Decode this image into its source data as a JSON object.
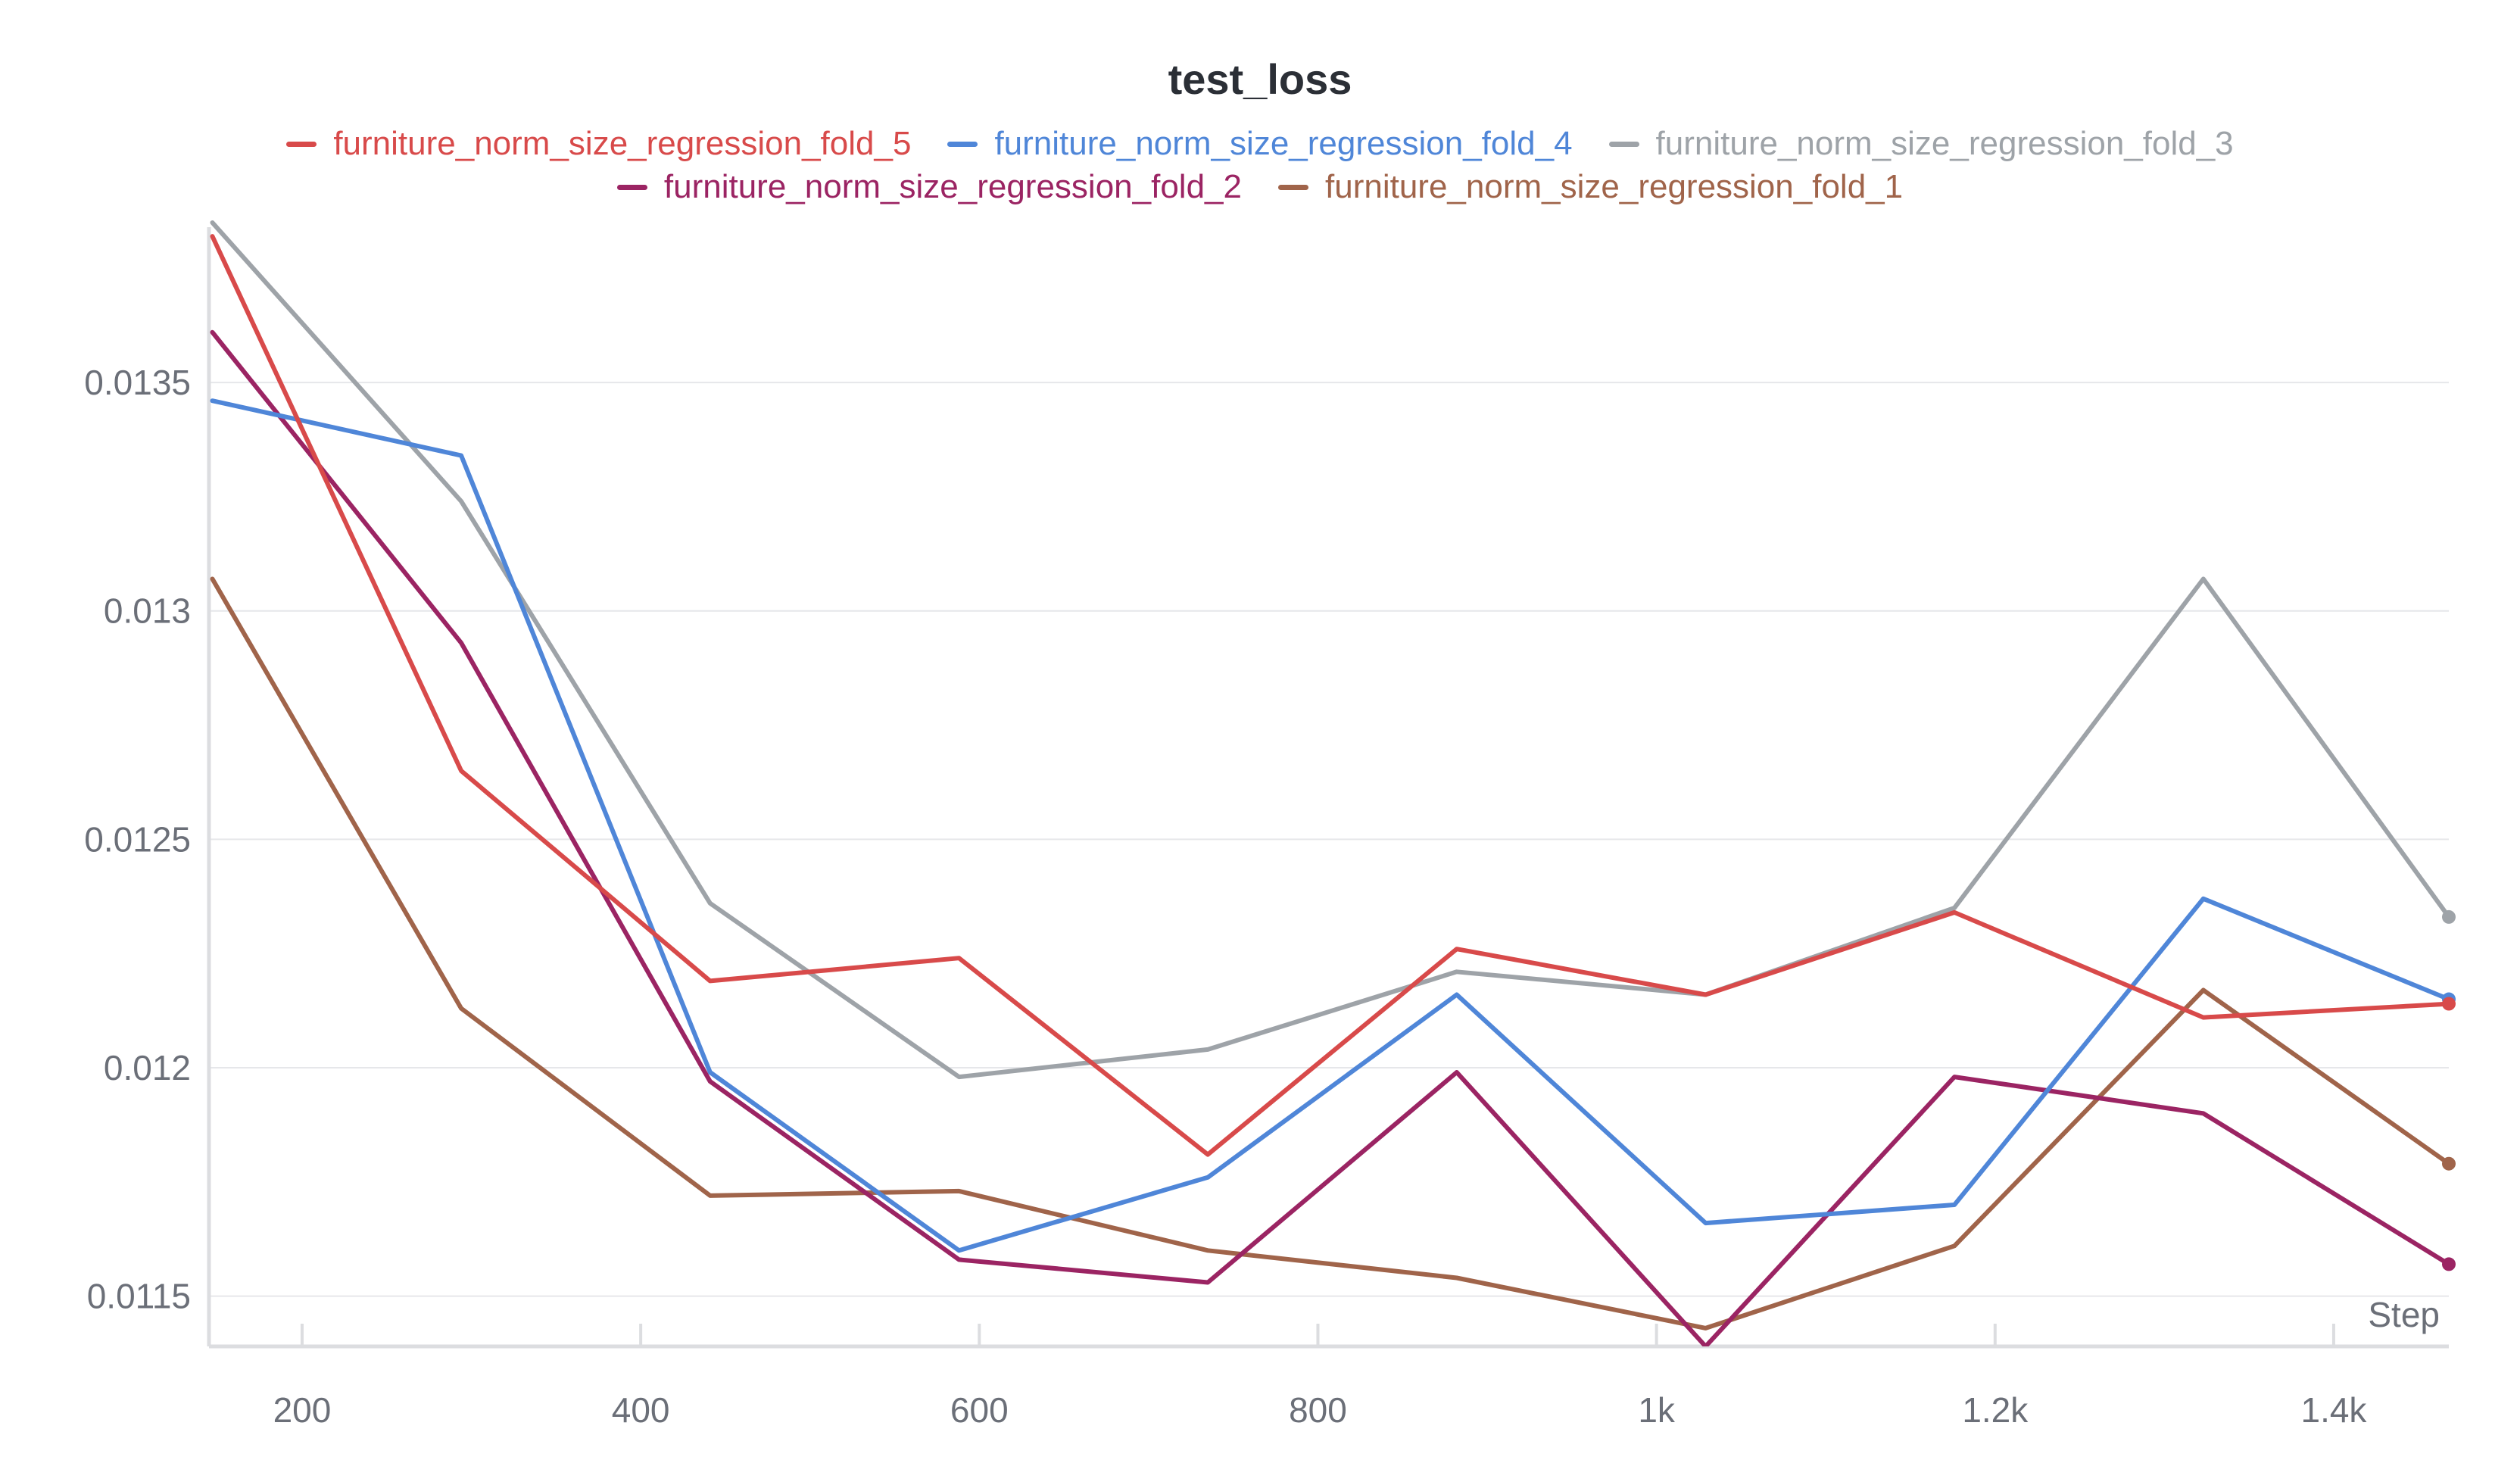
{
  "chart_data": {
    "type": "line",
    "title": "test_loss",
    "xlabel": "Step",
    "ylabel": "",
    "xlim": [
      145,
      1468
    ],
    "ylim": [
      0.01139,
      0.01384
    ],
    "x_ticks": [
      200,
      400,
      600,
      800,
      1000,
      1200,
      1400
    ],
    "x_tick_labels": [
      "200",
      "400",
      "600",
      "800",
      "1k",
      "1.2k",
      "1.4k"
    ],
    "y_ticks": [
      0.0115,
      0.012,
      0.0125,
      0.013,
      0.0135
    ],
    "y_tick_labels": [
      "0.0115",
      "0.012",
      "0.0125",
      "0.013",
      "0.0135"
    ],
    "grid": true,
    "legend_position": "top",
    "x": [
      147,
      294,
      441,
      588,
      735,
      882,
      1029,
      1176,
      1323,
      1468
    ],
    "series": [
      {
        "name": "furniture_norm_size_regression_fold_5",
        "color": "#d84a4a",
        "values": [
          0.01382,
          0.01265,
          0.01219,
          0.01224,
          0.01181,
          0.01226,
          0.01216,
          0.01234,
          0.01211,
          0.01214
        ]
      },
      {
        "name": "furniture_norm_size_regression_fold_4",
        "color": "#4f86d8",
        "values": [
          0.01346,
          0.01334,
          0.01199,
          0.0116,
          0.01176,
          0.01216,
          0.01166,
          0.0117,
          0.01237,
          0.01215
        ]
      },
      {
        "name": "furniture_norm_size_regression_fold_3",
        "color": "#9ea3a8",
        "values": [
          0.01385,
          0.01324,
          0.01236,
          0.01198,
          0.01204,
          0.01221,
          0.01216,
          0.01235,
          0.01307,
          0.01233
        ]
      },
      {
        "name": "furniture_norm_size_regression_fold_2",
        "color": "#9b2463",
        "values": [
          0.01361,
          0.01293,
          0.01197,
          0.01158,
          0.01153,
          0.01199,
          0.01139,
          0.01198,
          0.0119,
          0.01157
        ]
      },
      {
        "name": "furniture_norm_size_regression_fold_1",
        "color": "#a0644a",
        "values": [
          0.01307,
          0.01213,
          0.01172,
          0.01173,
          0.0116,
          0.01154,
          0.01143,
          0.01161,
          0.01217,
          0.01179
        ]
      }
    ]
  }
}
